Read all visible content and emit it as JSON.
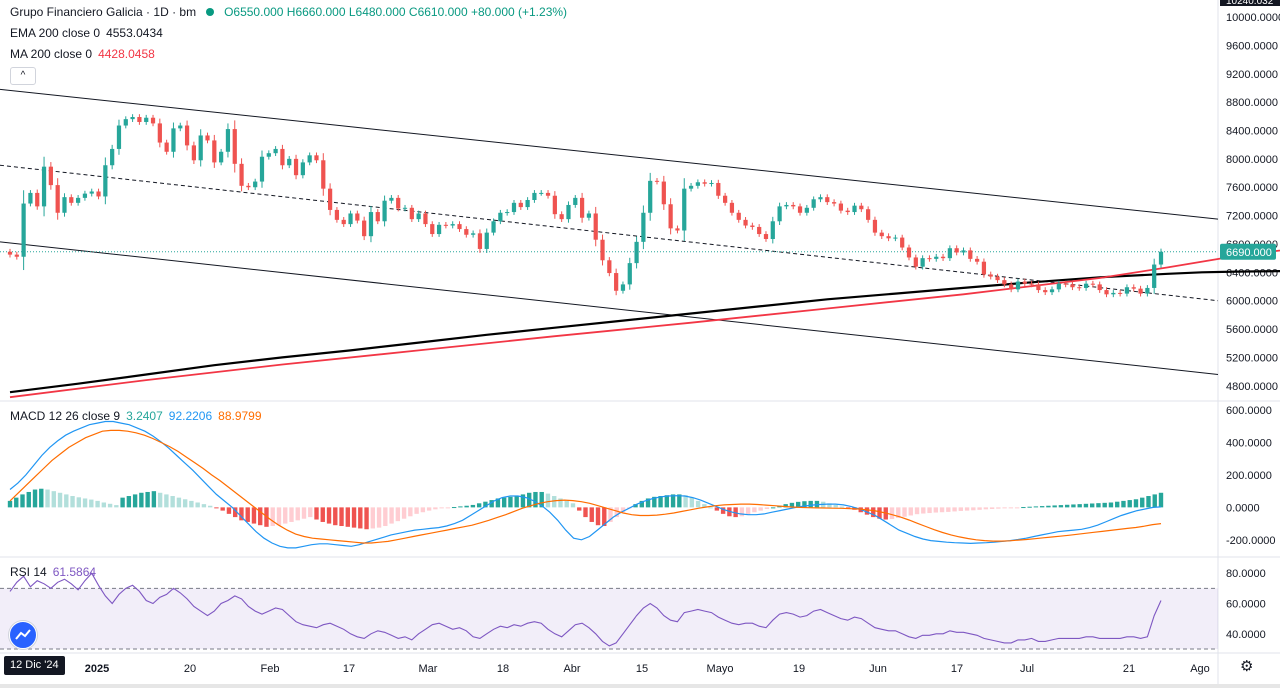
{
  "legend": {
    "symbol": "Grupo Financiero Galicia · 1D · bm",
    "ohlc": "O6550.000  H6660.000  L6480.000  C6610.000  +80.000 (+1.23%)",
    "ema_label": "EMA 200 close 0",
    "ema_value": "4553.0434",
    "ma_label": "MA 200 close 0",
    "ma_value": "4428.0458",
    "macd_label": "MACD 12 26 close 9",
    "macd_v1": "3.2407",
    "macd_v2": "92.2206",
    "macd_v3": "88.9799",
    "rsi_label": "RSI 14",
    "rsi_value": "61.5864"
  },
  "controls": {
    "collapse": "^",
    "date_badge": "12 Dic '24",
    "gear": "⚙"
  },
  "colors": {
    "up": "#26a69a",
    "down": "#ef5350",
    "ema": "#000000",
    "ma": "#f23645",
    "macd_line": "#2196f3",
    "signal_line": "#ff6d00",
    "rsi_line": "#7e57c2",
    "price_badge": "#26a69a"
  },
  "chart_data": [
    {
      "type": "candlestick",
      "ylim": [
        4600,
        10240
      ],
      "y_ticks": [
        "10240.032",
        "10000.0000",
        "9600.0000",
        "9200.0000",
        "8800.0000",
        "8400.0000",
        "8000.0000",
        "7600.0000",
        "7200.0000",
        "6800.0000",
        "6400.0000",
        "6000.0000",
        "5600.0000",
        "5200.0000",
        "4800.0000"
      ],
      "last_price_label": "6690.000",
      "last_price": 6690,
      "x_ticks": [
        "2025",
        "20",
        "Feb",
        "17",
        "Mar",
        "18",
        "Abr",
        "15",
        "Mayo",
        "19",
        "Jun",
        "17",
        "Jul",
        "21",
        "Ago"
      ],
      "closes": [
        6650,
        6620,
        7370,
        7520,
        7330,
        7890,
        7630,
        7240,
        7460,
        7380,
        7450,
        7510,
        7540,
        7470,
        7910,
        8140,
        8470,
        8560,
        8590,
        8520,
        8580,
        8500,
        8230,
        8100,
        8430,
        8470,
        8190,
        7980,
        8330,
        8260,
        7950,
        8100,
        8420,
        7930,
        7620,
        7600,
        7680,
        8030,
        8080,
        8140,
        7910,
        8000,
        7770,
        7950,
        8050,
        7980,
        7580,
        7280,
        7140,
        7080,
        7230,
        7130,
        6910,
        7250,
        7120,
        7410,
        7450,
        7300,
        7310,
        7150,
        7230,
        7080,
        6940,
        7070,
        7060,
        7080,
        7010,
        6930,
        6950,
        6730,
        6960,
        7120,
        7240,
        7250,
        7380,
        7320,
        7420,
        7520,
        7520,
        7480,
        7220,
        7150,
        7350,
        7450,
        7170,
        7230,
        6860,
        6570,
        6390,
        6140,
        6230,
        6530,
        6830,
        7240,
        7690,
        7680,
        7360,
        7020,
        6990,
        7580,
        7620,
        7670,
        7650,
        7660,
        7480,
        7380,
        7240,
        7140,
        7060,
        7040,
        6940,
        6870,
        7120,
        7330,
        7350,
        7330,
        7240,
        7310,
        7430,
        7460,
        7390,
        7370,
        7270,
        7250,
        7340,
        7290,
        7140,
        6960,
        6910,
        6880,
        6890,
        6750,
        6610,
        6480,
        6600,
        6590,
        6620,
        6600,
        6740,
        6680,
        6710,
        6590,
        6550,
        6370,
        6340,
        6290,
        6230,
        6160,
        6270,
        6240,
        6230,
        6150,
        6120,
        6160,
        6240,
        6230,
        6190,
        6180,
        6240,
        6230,
        6150,
        6090,
        6110,
        6100,
        6190,
        6170,
        6100,
        6180,
        6510,
        6690
      ]
    },
    {
      "type": "line",
      "series": [
        {
          "name": "EMA 200 close 0",
          "pairs": [
            [
              0,
              4710
            ],
            [
              10,
              4830
            ],
            [
              20,
              4960
            ],
            [
              30,
              5090
            ],
            [
              40,
              5200
            ],
            [
              50,
              5300
            ],
            [
              60,
              5410
            ],
            [
              70,
              5520
            ],
            [
              80,
              5620
            ],
            [
              90,
              5720
            ],
            [
              100,
              5820
            ],
            [
              110,
              5920
            ],
            [
              120,
              6020
            ],
            [
              130,
              6100
            ],
            [
              140,
              6180
            ],
            [
              150,
              6260
            ],
            [
              160,
              6330
            ],
            [
              170,
              6380
            ],
            [
              175,
              6400
            ],
            [
              180,
              6410
            ],
            [
              190,
              6420
            ],
            [
              200,
              6420
            ],
            [
              205,
              6420
            ]
          ]
        },
        {
          "name": "MA 200 close 0",
          "pairs": [
            [
              0,
              4640
            ],
            [
              20,
              4880
            ],
            [
              40,
              5100
            ],
            [
              60,
              5300
            ],
            [
              80,
              5500
            ],
            [
              100,
              5690
            ],
            [
              120,
              5890
            ],
            [
              140,
              6090
            ],
            [
              160,
              6320
            ],
            [
              170,
              6470
            ],
            [
              180,
              6630
            ],
            [
              190,
              6750
            ],
            [
              200,
              6820
            ],
            [
              205,
              6830
            ]
          ]
        }
      ]
    },
    {
      "type": "bar",
      "title": "MACD 12 26 close 9",
      "ylim": [
        -300,
        650
      ],
      "y_ticks": [
        "600.0000",
        "400.0000",
        "200.0000",
        "0.0000",
        "-200.0000"
      ],
      "histogram": [
        40,
        60,
        80,
        95,
        110,
        115,
        110,
        100,
        90,
        80,
        70,
        62,
        55,
        48,
        40,
        30,
        22,
        14,
        60,
        70,
        80,
        90,
        95,
        100,
        90,
        80,
        70,
        60,
        50,
        40,
        30,
        20,
        10,
        -5,
        -20,
        -40,
        -60,
        -80,
        -90,
        -100,
        -110,
        -120,
        -115,
        -110,
        -100,
        -90,
        -80,
        -70,
        -60,
        -75,
        -90,
        -100,
        -110,
        -115,
        -120,
        -125,
        -130,
        -135,
        -130,
        -125,
        -115,
        -100,
        -85,
        -70,
        -55,
        -40,
        -30,
        -20,
        -12,
        -6,
        -2,
        2,
        6,
        10,
        15,
        25,
        35,
        45,
        55,
        60,
        65,
        70,
        80,
        90,
        95,
        95,
        85,
        70,
        55,
        40,
        25,
        -20,
        -60,
        -90,
        -110,
        -115,
        -90,
        -60,
        -30,
        -5,
        20,
        40,
        55,
        65,
        70,
        75,
        80,
        80,
        75,
        60,
        40,
        20,
        0,
        -20,
        -40,
        -55,
        -60,
        -55,
        -45,
        -30,
        -20,
        -10,
        0,
        10,
        20,
        28,
        34,
        38,
        40,
        40,
        35,
        25,
        15,
        5,
        -5,
        -15,
        -30,
        -45,
        -60,
        -70,
        -75,
        -72,
        -65,
        -58,
        -50,
        -42,
        -38,
        -35,
        -32,
        -30,
        -28,
        -25,
        -22,
        -20,
        -18,
        -15,
        -12,
        -10,
        -8,
        -5,
        -3,
        -1,
        2,
        4,
        6,
        8,
        10,
        12,
        14,
        16,
        18,
        20,
        22,
        24,
        26,
        28,
        30,
        35,
        40,
        45,
        50,
        60,
        70,
        80,
        90
      ],
      "macd": [
        110,
        150,
        200,
        260,
        320,
        370,
        410,
        445,
        470,
        490,
        510,
        520,
        530,
        530,
        520,
        510,
        490,
        470,
        440,
        405,
        365,
        320,
        275,
        230,
        180,
        130,
        80,
        40,
        0,
        -50,
        -100,
        -150,
        -190,
        -220,
        -240,
        -250,
        -250,
        -240,
        -230,
        -225,
        -225,
        -230,
        -235,
        -240,
        -230,
        -215,
        -200,
        -185,
        -170,
        -160,
        -150,
        -140,
        -135,
        -130,
        -125,
        -115,
        -100,
        -80,
        -50,
        -20,
        10,
        40,
        60,
        70,
        70,
        60,
        40,
        10,
        -30,
        -80,
        -140,
        -190,
        -200,
        -180,
        -140,
        -100,
        -60,
        -30,
        -5,
        20,
        40,
        55,
        65,
        70,
        72,
        70,
        60,
        45,
        25,
        5,
        -15,
        -30,
        -40,
        -45,
        -45,
        -40,
        -30,
        -20,
        -10,
        0,
        8,
        14,
        18,
        20,
        20,
        15,
        5,
        -10,
        -30,
        -50,
        -80,
        -110,
        -140,
        -160,
        -180,
        -195,
        -205,
        -210,
        -215,
        -218,
        -220,
        -222,
        -220,
        -218,
        -215,
        -210,
        -205,
        -198,
        -190,
        -180,
        -170,
        -160,
        -150,
        -145,
        -140,
        -135,
        -125,
        -110,
        -90,
        -70,
        -50,
        -35,
        -20,
        -10,
        0,
        3
      ],
      "signal": [
        40,
        90,
        140,
        190,
        240,
        290,
        330,
        370,
        400,
        430,
        450,
        470,
        475,
        475,
        470,
        460,
        445,
        425,
        400,
        375,
        345,
        310,
        275,
        240,
        200,
        165,
        125,
        85,
        45,
        5,
        -35,
        -75,
        -110,
        -140,
        -165,
        -180,
        -190,
        -195,
        -200,
        -205,
        -210,
        -215,
        -220,
        -220,
        -215,
        -210,
        -200,
        -190,
        -180,
        -170,
        -160,
        -150,
        -140,
        -130,
        -120,
        -110,
        -95,
        -80,
        -62,
        -45,
        -25,
        -5,
        10,
        25,
        35,
        42,
        45,
        42,
        35,
        25,
        10,
        -5,
        -20,
        -35,
        -45,
        -50,
        -50,
        -48,
        -42,
        -35,
        -25,
        -15,
        -5,
        3,
        10,
        15,
        18,
        20,
        20,
        18,
        14,
        10,
        6,
        2,
        0,
        -2,
        -3,
        -4,
        -5,
        -6,
        -8,
        -10,
        -15,
        -22,
        -32,
        -45,
        -60,
        -78,
        -98,
        -118,
        -138,
        -155,
        -170,
        -182,
        -192,
        -200,
        -205,
        -208,
        -208,
        -206,
        -202,
        -198,
        -193,
        -188,
        -183,
        -178,
        -172,
        -166,
        -160,
        -154,
        -148,
        -142,
        -136,
        -130,
        -124,
        -116,
        -106,
        -100
      ]
    },
    {
      "type": "line",
      "title": "RSI 14",
      "ylim": [
        28,
        90
      ],
      "y_ticks": [
        "80.0000",
        "60.0000",
        "40.0000"
      ],
      "bands": [
        70,
        30
      ],
      "values": [
        68,
        74,
        78,
        71,
        75,
        73,
        70,
        74,
        76,
        73,
        69,
        75,
        80,
        72,
        65,
        60,
        66,
        70,
        72,
        68,
        62,
        60,
        64,
        66,
        70,
        67,
        63,
        58,
        55,
        52,
        55,
        60,
        62,
        65,
        63,
        58,
        55,
        53,
        55,
        57,
        56,
        52,
        48,
        46,
        45,
        44,
        46,
        47,
        45,
        43,
        40,
        38,
        37,
        40,
        42,
        41,
        39,
        37,
        38,
        36,
        40,
        43,
        46,
        47,
        45,
        43,
        44,
        42,
        38,
        37,
        40,
        43,
        45,
        44,
        46,
        45,
        47,
        48,
        47,
        43,
        40,
        38,
        42,
        46,
        47,
        44,
        40,
        35,
        32,
        34,
        40,
        46,
        52,
        57,
        60,
        57,
        52,
        49,
        48,
        54,
        55,
        56,
        55,
        54,
        51,
        49,
        47,
        46,
        47,
        47,
        45,
        44,
        49,
        53,
        54,
        53,
        51,
        52,
        55,
        56,
        54,
        52,
        50,
        49,
        51,
        50,
        47,
        44,
        43,
        42,
        42,
        40,
        38,
        37,
        39,
        39,
        40,
        40,
        42,
        41,
        41,
        40,
        39,
        37,
        36,
        35,
        34,
        34,
        36,
        36,
        37,
        35,
        35,
        36,
        37,
        37,
        37,
        37,
        38,
        38,
        37,
        37,
        37,
        37,
        38,
        38,
        37,
        38,
        52,
        62
      ]
    }
  ]
}
